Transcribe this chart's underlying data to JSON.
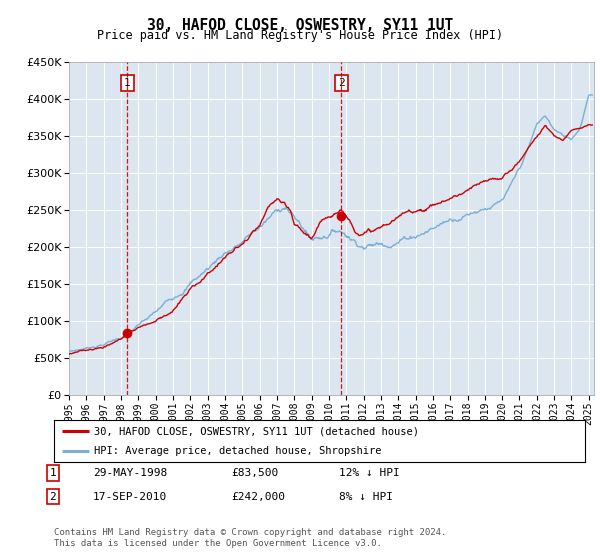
{
  "title": "30, HAFOD CLOSE, OSWESTRY, SY11 1UT",
  "subtitle": "Price paid vs. HM Land Registry's House Price Index (HPI)",
  "ylim": [
    0,
    450000
  ],
  "yticks": [
    0,
    50000,
    100000,
    150000,
    200000,
    250000,
    300000,
    350000,
    400000,
    450000
  ],
  "xlim_start": 1995,
  "xlim_end": 2025.3,
  "background_color": "#ffffff",
  "plot_bg_color": "#dce6f1",
  "grid_color": "#ffffff",
  "hpi_line_color": "#7bafd4",
  "price_line_color": "#cc0000",
  "transaction1": {
    "marker_x": 1998.37,
    "marker_y": 83500,
    "vline_x": 1998.37,
    "box_label": "1"
  },
  "transaction2": {
    "marker_x": 2010.71,
    "marker_y": 242000,
    "vline_x": 2010.71,
    "box_label": "2"
  },
  "legend_line1": "30, HAFOD CLOSE, OSWESTRY, SY11 1UT (detached house)",
  "legend_line2": "HPI: Average price, detached house, Shropshire",
  "footer": "Contains HM Land Registry data © Crown copyright and database right 2024.\nThis data is licensed under the Open Government Licence v3.0.",
  "table_row1": [
    "1",
    "29-MAY-1998",
    "£83,500",
    "12% ↓ HPI"
  ],
  "table_row2": [
    "2",
    "17-SEP-2010",
    "£242,000",
    "8% ↓ HPI"
  ],
  "hpi_anchors_yr": [
    1995,
    1996,
    1997,
    1998,
    1999,
    2000,
    2001,
    2002,
    2003,
    2004,
    2005,
    2006,
    2007,
    2007.5,
    2008,
    2008.5,
    2009,
    2009.5,
    2010,
    2010.5,
    2011,
    2011.5,
    2012,
    2013,
    2014,
    2015,
    2016,
    2017,
    2018,
    2019,
    2020,
    2020.5,
    2021,
    2021.5,
    2022,
    2022.5,
    2023,
    2023.5,
    2024,
    2024.5,
    2025
  ],
  "hpi_anchors_val": [
    58000,
    63000,
    70000,
    80000,
    95000,
    110000,
    130000,
    155000,
    175000,
    200000,
    215000,
    235000,
    255000,
    265000,
    248000,
    235000,
    220000,
    225000,
    232000,
    238000,
    235000,
    228000,
    225000,
    228000,
    238000,
    248000,
    258000,
    270000,
    280000,
    290000,
    295000,
    310000,
    330000,
    355000,
    385000,
    395000,
    375000,
    365000,
    360000,
    375000,
    420000
  ],
  "price_anchors_yr": [
    1995,
    1996,
    1997,
    1998,
    1998.37,
    1999,
    2000,
    2001,
    2002,
    2003,
    2004,
    2005,
    2006,
    2006.5,
    2007,
    2007.3,
    2007.8,
    2008,
    2008.5,
    2009,
    2009.5,
    2010,
    2010.71,
    2011,
    2011.5,
    2012,
    2013,
    2014,
    2015,
    2016,
    2017,
    2018,
    2019,
    2020,
    2021,
    2022,
    2022.5,
    2023,
    2023.5,
    2024,
    2025
  ],
  "price_anchors_val": [
    55000,
    59000,
    65000,
    76000,
    83500,
    93000,
    103000,
    120000,
    145000,
    168000,
    192000,
    208000,
    228000,
    248000,
    260000,
    252000,
    235000,
    218000,
    208000,
    200000,
    215000,
    228000,
    242000,
    232000,
    218000,
    215000,
    220000,
    232000,
    242000,
    252000,
    262000,
    272000,
    280000,
    285000,
    310000,
    345000,
    360000,
    345000,
    340000,
    355000,
    365000
  ]
}
